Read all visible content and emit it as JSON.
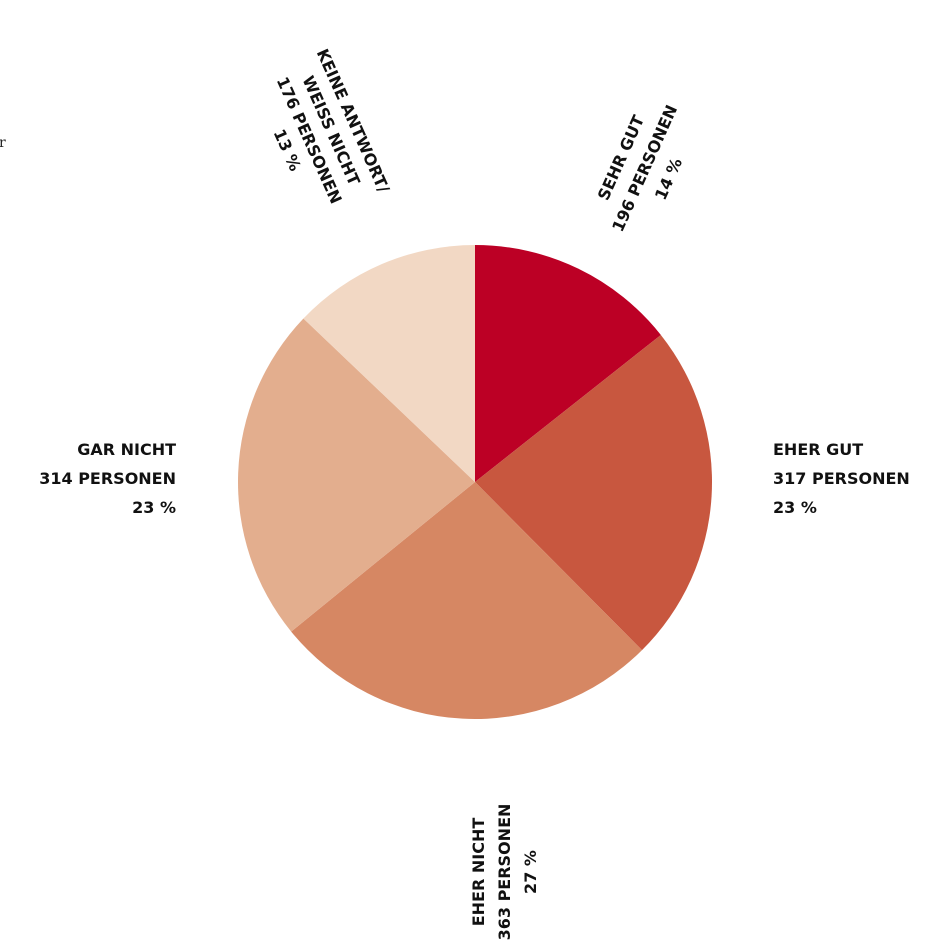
{
  "edge_text": "r",
  "chart_data": {
    "type": "pie",
    "colors": [
      "#bc0025",
      "#c8573f",
      "#d68763",
      "#e3ae8e",
      "#f2d8c4"
    ],
    "slices": [
      {
        "lines": [
          "SEHR GUT",
          "196 PERSONEN",
          "14 %"
        ],
        "persons": 196,
        "percent": 14
      },
      {
        "lines": [
          "EHER GUT",
          "317 PERSONEN",
          "23 %"
        ],
        "persons": 317,
        "percent": 23
      },
      {
        "lines": [
          "EHER NICHT",
          "363 PERSONEN",
          "27 %"
        ],
        "persons": 363,
        "percent": 27
      },
      {
        "lines": [
          "GAR NICHT",
          "314 PERSONEN",
          "23 %"
        ],
        "persons": 314,
        "percent": 23
      },
      {
        "lines": [
          "KEINE ANTWORT/",
          "WEISS NICHT",
          "176 PERSONEN",
          "13 %"
        ],
        "persons": 176,
        "percent": 13
      }
    ]
  }
}
